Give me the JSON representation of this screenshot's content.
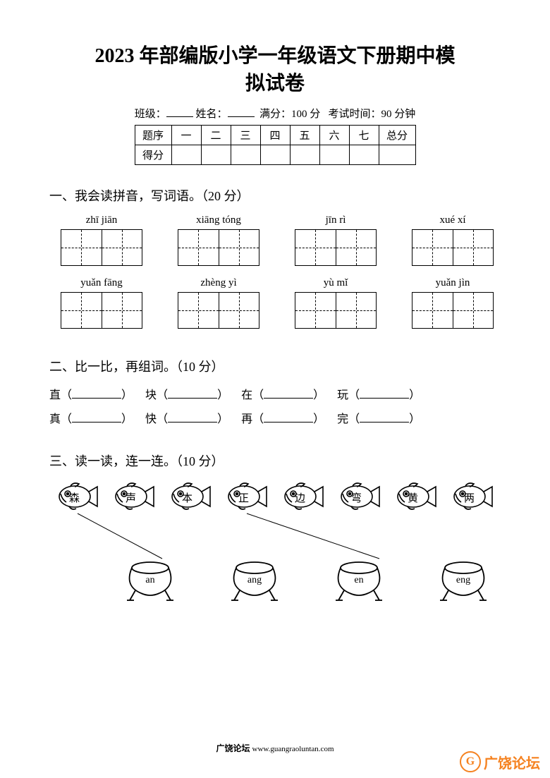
{
  "title_line1": "2023 年部编版小学一年级语文下册期中模",
  "title_line2": "拟试卷",
  "info": {
    "class_label": "班级：",
    "name_label": "姓名：",
    "full_label": "满分：100 分",
    "time_label": "考试时间：90 分钟"
  },
  "score_table": {
    "row1": [
      "题序",
      "一",
      "二",
      "三",
      "四",
      "五",
      "六",
      "七",
      "总分"
    ],
    "row2_label": "得分"
  },
  "sections": {
    "s1": {
      "title": "一、我会读拼音，写词语。（20 分）",
      "row1": [
        "zhī  jiān",
        "xiāng tóng",
        "jīn rì",
        "xué xí"
      ],
      "row2": [
        "yuǎn fāng",
        "zhèng yì",
        "yù mǐ",
        "yuǎn jìn"
      ]
    },
    "s2": {
      "title": "二、比一比，再组词。（10 分）",
      "pairs": [
        [
          "直",
          "块",
          "在",
          "玩"
        ],
        [
          "真",
          "快",
          "再",
          "完"
        ]
      ]
    },
    "s3": {
      "title": "三、读一读，连一连。（10 分）",
      "fish_chars": [
        "森",
        "声",
        "本",
        "正",
        "边",
        "弯",
        "黄",
        "两"
      ],
      "pot_labels": [
        "an",
        "ang",
        "en",
        "eng"
      ],
      "fish_color": "#000000",
      "pot_color": "#000000",
      "line_color": "#000000"
    }
  },
  "footer": {
    "name": "广饶论坛",
    "url": "www.guangraoluntan.com"
  },
  "watermark": {
    "icon": "G",
    "text": "广饶论坛",
    "color": "#f58220"
  }
}
